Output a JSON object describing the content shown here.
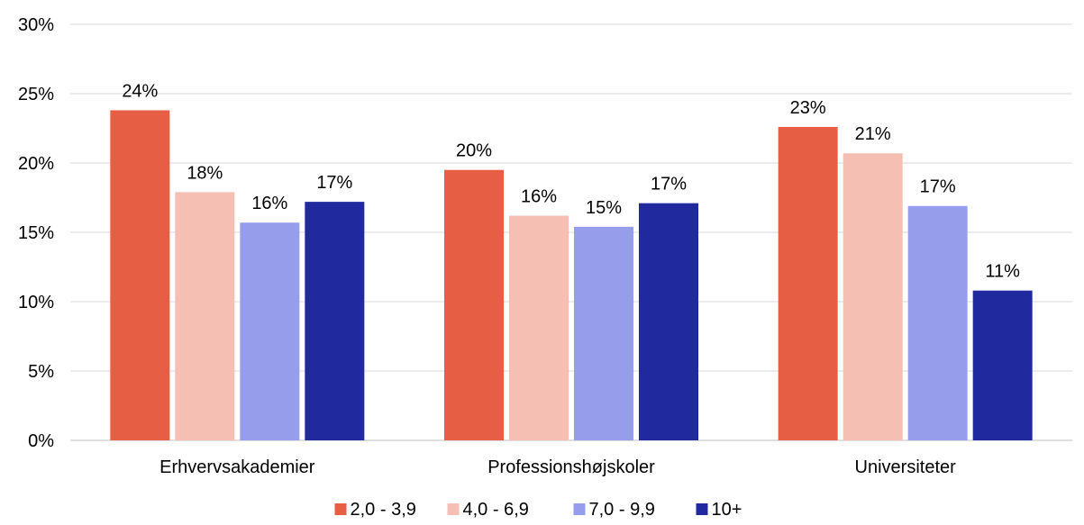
{
  "chart_data": {
    "type": "bar",
    "categories": [
      "Erhvervsakademier",
      "Professionshøjskoler",
      "Universiteter"
    ],
    "series": [
      {
        "name": "2,0 - 3,9",
        "color": "#E65F44",
        "values": [
          23.8,
          19.5,
          22.6
        ],
        "labels": [
          "24%",
          "20%",
          "23%"
        ]
      },
      {
        "name": "4,0 - 6,9",
        "color": "#F5BFB4",
        "values": [
          17.9,
          16.2,
          20.7
        ],
        "labels": [
          "18%",
          "16%",
          "21%"
        ]
      },
      {
        "name": "7,0 - 9,9",
        "color": "#969EEB",
        "values": [
          15.7,
          15.4,
          16.9
        ],
        "labels": [
          "16%",
          "15%",
          "17%"
        ]
      },
      {
        "name": "10+",
        "color": "#202A9E",
        "values": [
          17.2,
          17.1,
          10.8
        ],
        "labels": [
          "17%",
          "17%",
          "11%"
        ]
      }
    ],
    "y_ticks": [
      "0%",
      "5%",
      "10%",
      "15%",
      "20%",
      "25%",
      "30%"
    ],
    "ylim": [
      0,
      30
    ],
    "grid": true,
    "legend": "bottom-center"
  }
}
